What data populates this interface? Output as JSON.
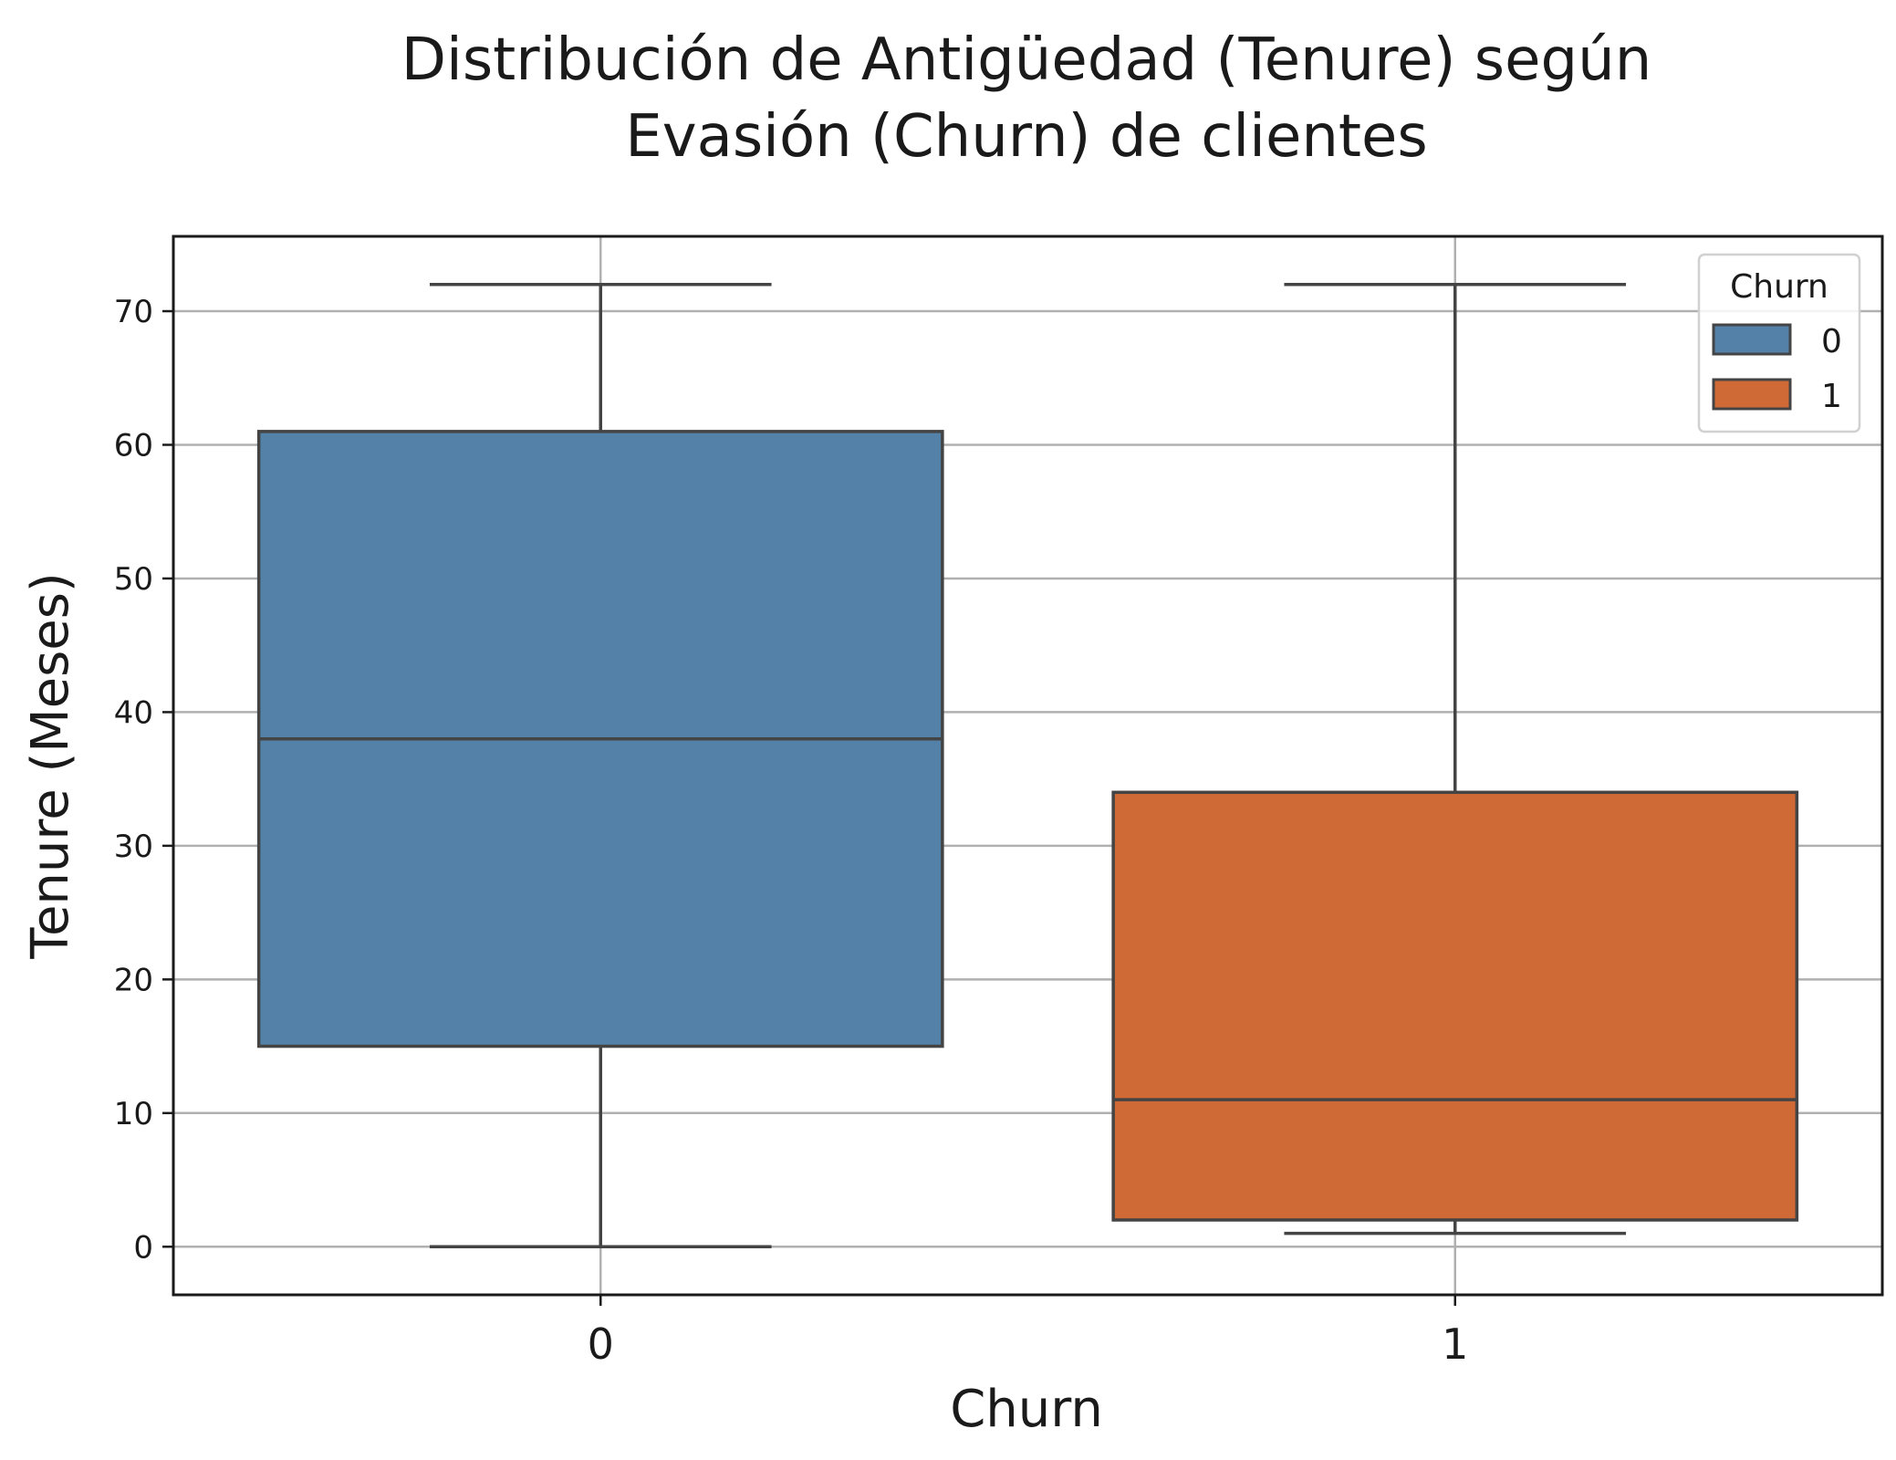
{
  "chart_data": {
    "type": "box",
    "title": [
      "Distribución de Antigüedad (Tenure) según",
      "Evasión (Churn) de clientes"
    ],
    "xlabel": "Churn",
    "ylabel": "Tenure (Meses)",
    "categories": [
      "0",
      "1"
    ],
    "ylim": [
      -3.6,
      75.6
    ],
    "yticks": [
      0,
      10,
      20,
      30,
      40,
      50,
      60,
      70
    ],
    "grid": true,
    "series": [
      {
        "name": "0",
        "color": "#5381a7",
        "whisker_low": 0,
        "q1": 15,
        "median": 38,
        "q3": 61,
        "whisker_high": 72
      },
      {
        "name": "1",
        "color": "#cf6a36",
        "whisker_low": 1,
        "q1": 2,
        "median": 11,
        "q3": 34,
        "whisker_high": 72
      }
    ],
    "legend": {
      "title": "Churn",
      "position": "top-right",
      "entries": [
        "0",
        "1"
      ]
    }
  }
}
